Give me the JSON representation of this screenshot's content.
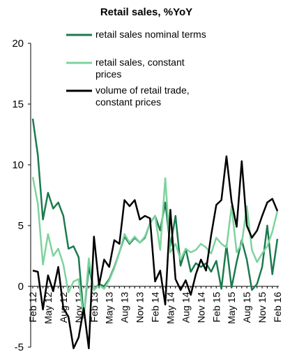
{
  "chart_data": {
    "type": "line",
    "title": "Retail sales, %YoY",
    "categories": [
      "Feb 12",
      null,
      null,
      "May 12",
      null,
      null,
      "Aug 12",
      null,
      null,
      "Nov 12",
      null,
      null,
      "Feb 13",
      null,
      null,
      "May 13",
      null,
      null,
      "Aug 13",
      null,
      null,
      "Nov 13",
      null,
      null,
      "Feb 14",
      null,
      null,
      "May 14",
      null,
      null,
      "Aug 14",
      null,
      null,
      "Nov 14",
      null,
      null,
      "Feb 15",
      null,
      null,
      "May 15",
      null,
      null,
      "Aug 15",
      null,
      null,
      "Nov 15",
      null,
      null,
      "Feb 16"
    ],
    "series": [
      {
        "name": "retail sales nominal terms",
        "color": "#1b7a4e",
        "values": [
          13.8,
          10.8,
          5.5,
          7.7,
          6.4,
          6.9,
          5.8,
          3.1,
          3.3,
          2.4,
          -2.5,
          1.6,
          -0.3,
          0.2,
          0.0,
          0.6,
          1.6,
          2.8,
          4.1,
          3.5,
          4.0,
          3.6,
          4.0,
          5.2,
          5.8,
          4.6,
          6.9,
          3.3,
          5.8,
          1.7,
          3.1,
          1.2,
          1.9,
          1.6,
          1.9,
          1.2,
          2.1,
          -0.2,
          3.4,
          -0.1,
          2.0,
          3.8,
          2.2,
          -0.3,
          0.2,
          1.6,
          5.0,
          1.0,
          3.9
        ]
      },
      {
        "name": "retail sales, constant prices",
        "color": "#7dd39d",
        "values": [
          9.0,
          6.8,
          1.8,
          4.3,
          2.5,
          3.1,
          1.8,
          -0.5,
          0.4,
          0.6,
          -2.6,
          2.3,
          -0.3,
          0.1,
          -0.2,
          0.5,
          1.5,
          2.8,
          4.3,
          3.6,
          4.1,
          3.6,
          4.1,
          5.2,
          5.8,
          3.0,
          8.9,
          2.8,
          3.5,
          2.2,
          3.1,
          2.8,
          3.0,
          3.5,
          3.2,
          2.7,
          4.0,
          3.5,
          3.2,
          6.6,
          2.8,
          3.5,
          6.6,
          3.0,
          2.0,
          2.7,
          3.3,
          4.5,
          6.2
        ]
      },
      {
        "name": "volume of retail trade, constant prices",
        "color": "#000000",
        "values": [
          1.3,
          1.2,
          -1.9,
          0.9,
          -0.4,
          1.6,
          -1.8,
          -2.5,
          -5.1,
          -4.2,
          -1.8,
          -5.1,
          4.1,
          0.1,
          2.2,
          1.6,
          3.8,
          3.5,
          7.1,
          6.6,
          7.1,
          5.5,
          5.8,
          5.6,
          0.4,
          1.3,
          -1.5,
          6.3,
          0.6,
          -0.3,
          0.5,
          -0.7,
          1.0,
          2.2,
          1.3,
          4.2,
          6.7,
          7.1,
          10.7,
          7.0,
          4.9,
          10.3,
          5.0,
          4.0,
          4.6,
          5.8,
          6.9,
          7.2,
          6.2
        ]
      }
    ],
    "ylim": [
      -5,
      20
    ],
    "yticks": [
      -5,
      0,
      5,
      10,
      15,
      20
    ],
    "grid": false
  }
}
